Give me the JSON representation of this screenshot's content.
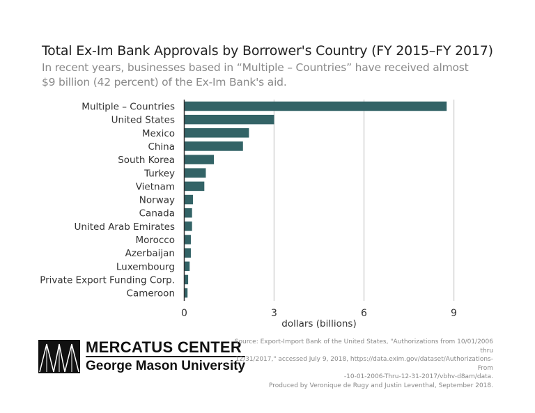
{
  "title": "Total Ex-Im Bank Approvals by Borrower's Country (FY 2015–FY 2017)",
  "subtitle_lines": [
    "In recent years, businesses based in “Multiple – Countries” have received almost",
    "$9 billion (42 percent) of the Ex-Im Bank's aid."
  ],
  "chart_data": {
    "type": "bar",
    "orientation": "horizontal",
    "title": "Total Ex-Im Bank Approvals by Borrower's Country (FY 2015–FY 2017)",
    "xlabel": "dollars (billions)",
    "ylabel": "",
    "xlim": [
      0,
      9
    ],
    "xticks": [
      0,
      3,
      6,
      9
    ],
    "grid": true,
    "bar_color": "#336366",
    "categories": [
      "Multiple – Countries",
      "United States",
      "Mexico",
      "China",
      "South Korea",
      "Turkey",
      "Vietnam",
      "Norway",
      "Canada",
      "United Arab Emirates",
      "Morocco",
      "Azerbaijan",
      "Luxembourg",
      "Private Export Funding Corp.",
      "Cameroon"
    ],
    "values": [
      8.76,
      3.0,
      2.16,
      1.96,
      0.99,
      0.72,
      0.67,
      0.29,
      0.26,
      0.26,
      0.22,
      0.22,
      0.18,
      0.13,
      0.11
    ]
  },
  "logo": {
    "line1": "MERCATUS CENTER",
    "line2": "George Mason University"
  },
  "source_lines": [
    "Source: Export-Import Bank of the United States, \"Authorizations from 10/01/2006 thru",
    "12/31/2017,\" accessed July 9, 2018, https://data.exim.gov/dataset/Authorizations-From",
    "-10-01-2006-Thru-12-31-2017/vbhv-d8am/data.",
    "Produced by Veronique de Rugy and Justin Leventhal, September 2018."
  ]
}
